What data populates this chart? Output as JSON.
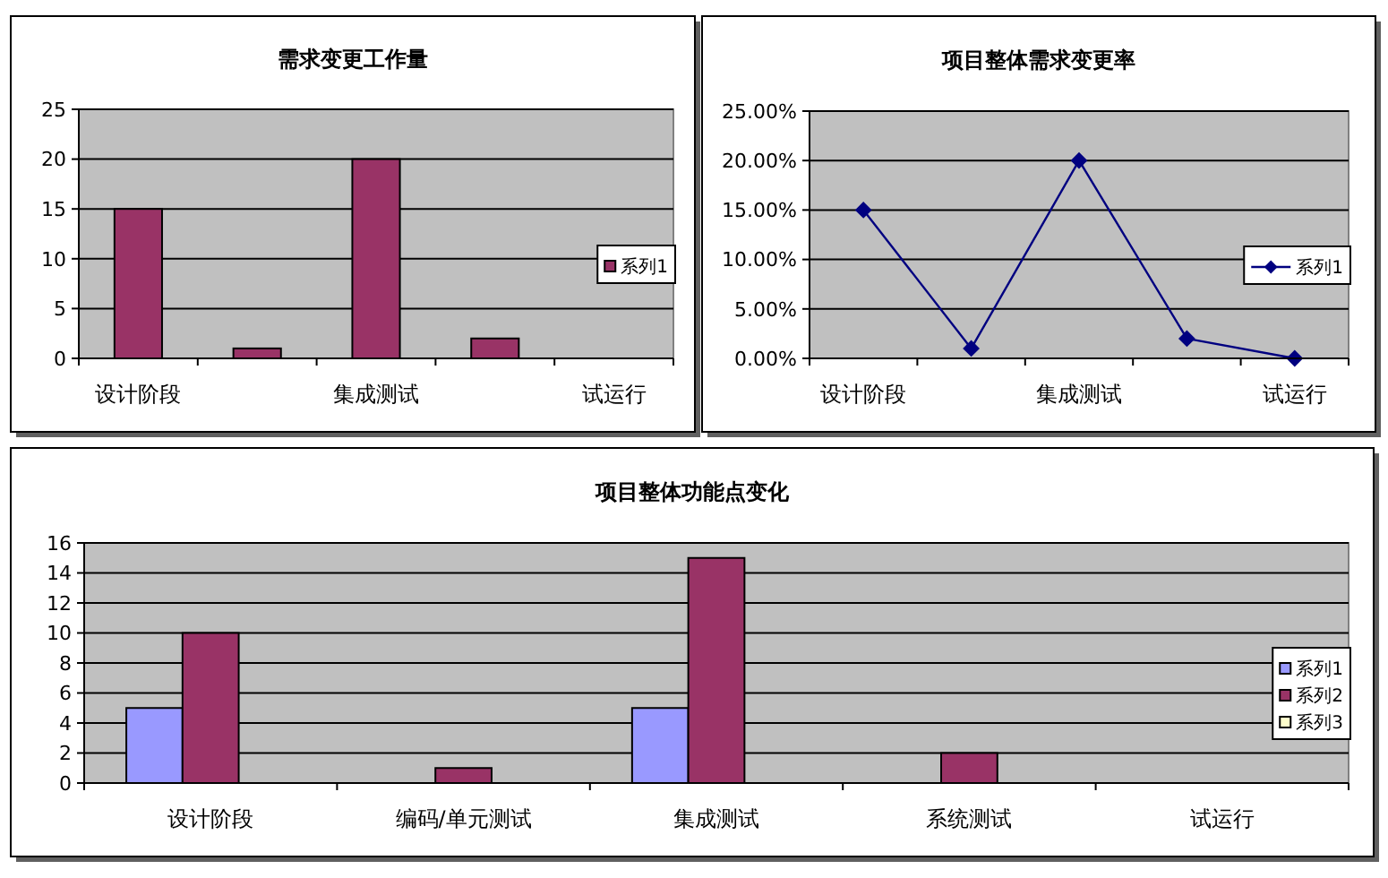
{
  "chart_data": [
    {
      "type": "bar",
      "title": "需求变更工作量",
      "categories": [
        "设计阶段",
        null,
        "集成测试",
        null,
        "试运行"
      ],
      "series": [
        {
          "name": "系列1",
          "color": "#993366",
          "values": [
            15,
            1,
            20,
            2,
            null
          ]
        }
      ],
      "ylim": [
        0,
        25
      ],
      "yticks": [
        0,
        5,
        10,
        15,
        20,
        25
      ],
      "grid": "y",
      "legend": "right"
    },
    {
      "type": "line",
      "title": "项目整体需求变更率",
      "categories": [
        "设计阶段",
        null,
        "集成测试",
        null,
        "试运行"
      ],
      "series": [
        {
          "name": "系列1",
          "color": "#000080",
          "values": [
            15,
            1,
            20,
            2,
            0
          ]
        }
      ],
      "ylim": [
        0,
        25
      ],
      "yticks": [
        {
          "value": 0,
          "label": "0.00%"
        },
        {
          "value": 5,
          "label": "5.00%"
        },
        {
          "value": 10,
          "label": "10.00%"
        },
        {
          "value": 15,
          "label": "15.00%"
        },
        {
          "value": 20,
          "label": "20.00%"
        },
        {
          "value": 25,
          "label": "25.00%"
        }
      ],
      "grid": "y",
      "legend": "right",
      "marker": "diamond",
      "line_style": "solid"
    },
    {
      "type": "bar",
      "title": "项目整体功能点变化",
      "categories": [
        "设计阶段",
        "编码/单元测试",
        "集成测试",
        "系统测试",
        "试运行"
      ],
      "series": [
        {
          "name": "系列1",
          "color": "#9999ff",
          "values": [
            5,
            null,
            5,
            null,
            null
          ]
        },
        {
          "name": "系列2",
          "color": "#993366",
          "values": [
            10,
            1,
            15,
            2,
            null
          ]
        },
        {
          "name": "系列3",
          "color": "#ffffcc",
          "values": [
            null,
            null,
            null,
            null,
            null
          ]
        }
      ],
      "ylim": [
        0,
        16
      ],
      "yticks": [
        0,
        2,
        4,
        6,
        8,
        10,
        12,
        14,
        16
      ],
      "grid": "y",
      "legend": "right"
    }
  ]
}
